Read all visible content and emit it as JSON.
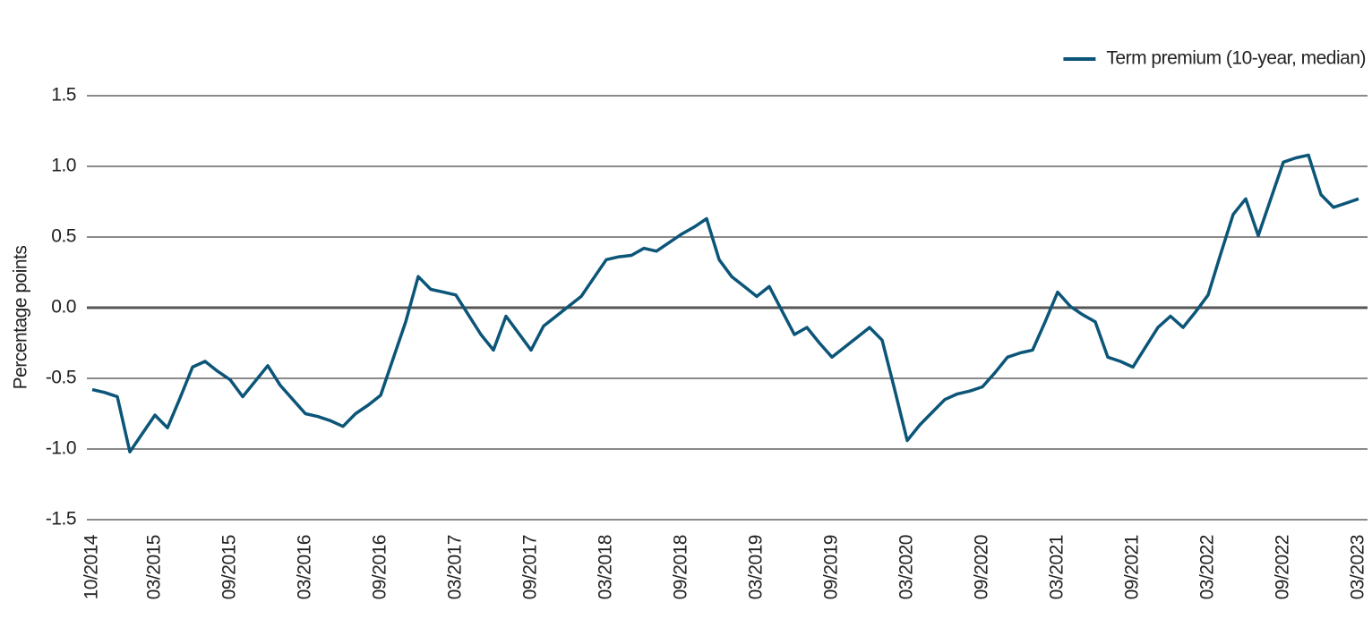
{
  "chart_data": {
    "type": "line",
    "y_label": "Percentage points",
    "categories": [
      "10/2014",
      null,
      null,
      null,
      null,
      "03/2015",
      null,
      null,
      null,
      null,
      null,
      "09/2015",
      null,
      null,
      null,
      null,
      null,
      "03/2016",
      null,
      null,
      null,
      null,
      null,
      "09/2016",
      null,
      null,
      null,
      null,
      null,
      "03/2017",
      null,
      null,
      null,
      null,
      null,
      "09/2017",
      null,
      null,
      null,
      null,
      null,
      "03/2018",
      null,
      null,
      null,
      null,
      null,
      "09/2018",
      null,
      null,
      null,
      null,
      null,
      "03/2019",
      null,
      null,
      null,
      null,
      null,
      "09/2019",
      null,
      null,
      null,
      null,
      null,
      "03/2020",
      null,
      null,
      null,
      null,
      null,
      "09/2020",
      null,
      null,
      null,
      null,
      null,
      "03/2021",
      null,
      null,
      null,
      null,
      null,
      "09/2021",
      null,
      null,
      null,
      null,
      null,
      "03/2022",
      null,
      null,
      null,
      null,
      null,
      "09/2022",
      null,
      null,
      null,
      null,
      null,
      "03/2023"
    ],
    "series": [
      {
        "name": "Term premium (10-year, median)",
        "color": "#0b5578",
        "values": [
          -0.58,
          -0.6,
          -0.63,
          -1.02,
          -0.89,
          -0.76,
          -0.85,
          -0.64,
          -0.42,
          -0.38,
          -0.45,
          -0.51,
          -0.63,
          -0.52,
          -0.41,
          -0.55,
          -0.65,
          -0.75,
          -0.77,
          -0.8,
          -0.84,
          -0.75,
          -0.69,
          -0.62,
          -0.36,
          -0.1,
          0.22,
          0.13,
          0.11,
          0.09,
          -0.05,
          -0.19,
          -0.3,
          -0.06,
          -0.18,
          -0.3,
          -0.13,
          -0.06,
          0.01,
          0.08,
          0.21,
          0.34,
          0.36,
          0.37,
          0.42,
          0.4,
          0.46,
          0.52,
          0.57,
          0.63,
          0.34,
          0.22,
          0.15,
          0.08,
          0.15,
          -0.02,
          -0.19,
          -0.14,
          -0.25,
          -0.35,
          -0.28,
          -0.21,
          -0.14,
          -0.23,
          -0.58,
          -0.94,
          -0.83,
          -0.74,
          -0.65,
          -0.61,
          -0.59,
          -0.56,
          -0.46,
          -0.35,
          -0.32,
          -0.3,
          -0.1,
          0.11,
          0.01,
          -0.05,
          -0.1,
          -0.35,
          -0.38,
          -0.42,
          -0.28,
          -0.14,
          -0.06,
          -0.14,
          -0.03,
          0.09,
          0.38,
          0.66,
          0.77,
          0.51,
          0.77,
          1.03,
          1.06,
          1.08,
          0.8,
          0.71,
          0.74,
          0.77
        ]
      }
    ],
    "ylim": [
      -1.5,
      1.5
    ],
    "yticks": [
      1.5,
      {
        "value": 1.0,
        "label": "1.0"
      },
      0.5,
      {
        "value": 0,
        "label": "0.0"
      },
      -0.5,
      {
        "value": -1.0,
        "label": "-1.0"
      },
      -1.5
    ],
    "grid": true,
    "zero_line": true,
    "legend": "top-right"
  }
}
